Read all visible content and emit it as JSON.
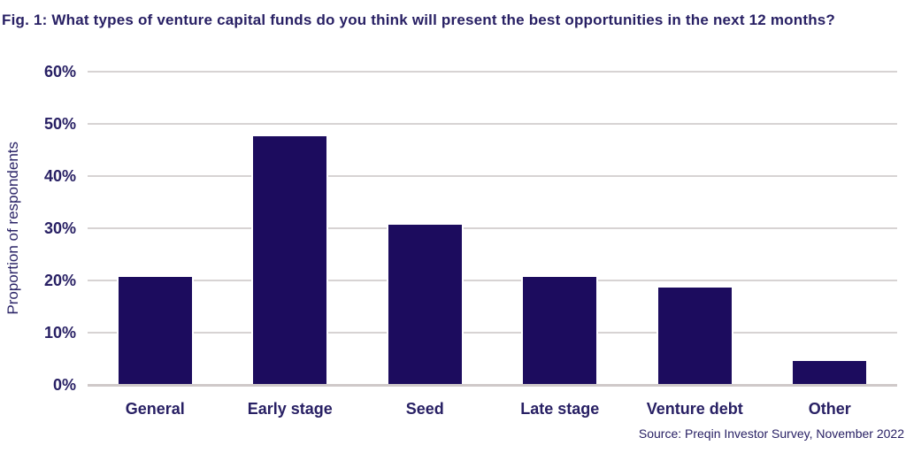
{
  "figure": {
    "title": "Fig. 1: What types of venture capital funds do you think will present the best opportunities in the next 12 months?",
    "source": "Source: Preqin Investor Survey, November 2022"
  },
  "chart_data": {
    "type": "bar",
    "title": "Fig. 1: What types of venture capital funds do you think will present the best opportunities in the next 12 months?",
    "categories": [
      "General",
      "Early stage",
      "Seed",
      "Late stage",
      "Venture debt",
      "Other"
    ],
    "values": [
      21,
      48,
      31,
      21,
      19,
      5
    ],
    "xlabel": "",
    "ylabel": "Proportion of respondents",
    "ylim": [
      0,
      60
    ],
    "yticks": [
      0,
      10,
      20,
      30,
      40,
      50,
      60
    ],
    "ytick_labels": [
      "0%",
      "10%",
      "20%",
      "30%",
      "40%",
      "50%",
      "60%"
    ],
    "grid": true,
    "legend_position": "none",
    "source": "Source: Preqin Investor Survey, November 2022",
    "colors": {
      "bar_fill": "#1c0c5e",
      "bar_border": "#ffffff",
      "gridline": "#d7d3d3",
      "axis_line": "#cfc9c9",
      "text": "#282064",
      "background": "#ffffff"
    }
  }
}
